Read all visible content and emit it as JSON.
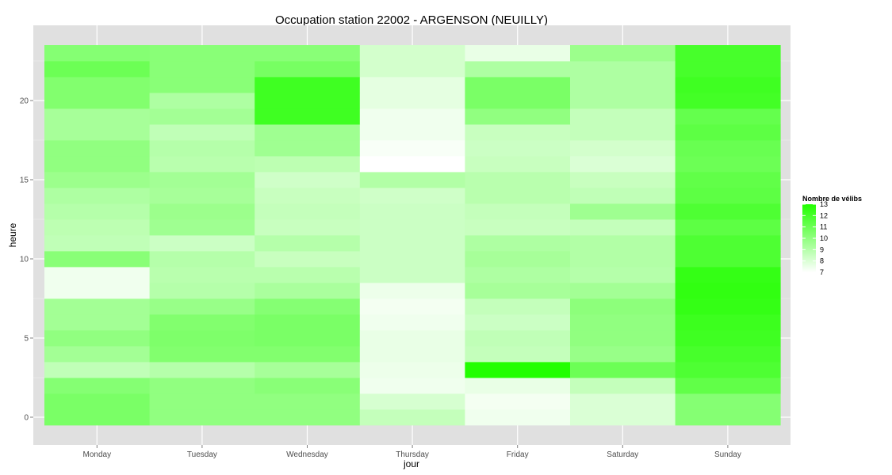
{
  "chart_data": {
    "type": "heatmap",
    "title": "Occupation station 22002 - ARGENSON (NEUILLY)",
    "xlabel": "jour",
    "ylabel": "heure",
    "categories": [
      "Monday",
      "Tuesday",
      "Wednesday",
      "Thursday",
      "Friday",
      "Saturday",
      "Sunday"
    ],
    "hours": [
      0,
      1,
      2,
      3,
      4,
      5,
      6,
      7,
      8,
      9,
      10,
      11,
      12,
      13,
      14,
      15,
      16,
      17,
      18,
      19,
      20,
      21,
      22,
      23
    ],
    "ylim": [
      -0.5,
      23.5
    ],
    "y_ticks": [
      0,
      5,
      10,
      15,
      20
    ],
    "grid": true,
    "values": [
      [
        10.6,
        10.0,
        10.0,
        8.6,
        7.4,
        8.0,
        10.3
      ],
      [
        10.6,
        10.0,
        10.0,
        8.1,
        7.3,
        8.0,
        10.3
      ],
      [
        10.3,
        10.0,
        10.2,
        7.4,
        7.6,
        8.6,
        11.3
      ],
      [
        8.7,
        9.0,
        9.4,
        7.5,
        13.6,
        11.0,
        11.8
      ],
      [
        9.5,
        10.4,
        10.4,
        7.6,
        8.6,
        9.8,
        12.0
      ],
      [
        10.0,
        10.5,
        10.6,
        7.6,
        8.7,
        10.0,
        12.2
      ],
      [
        9.5,
        10.4,
        10.6,
        7.4,
        8.4,
        10.0,
        12.3
      ],
      [
        9.5,
        9.8,
        10.3,
        7.3,
        8.6,
        10.1,
        12.5
      ],
      [
        7.4,
        9.0,
        9.3,
        7.5,
        9.4,
        9.5,
        12.6
      ],
      [
        7.4,
        8.9,
        8.9,
        8.4,
        9.2,
        9.0,
        12.5
      ],
      [
        10.2,
        9.0,
        8.5,
        8.4,
        9.4,
        9.1,
        11.8
      ],
      [
        8.7,
        8.4,
        9.0,
        8.4,
        9.2,
        9.1,
        11.8
      ],
      [
        8.8,
        9.6,
        8.5,
        8.4,
        8.5,
        8.6,
        11.4
      ],
      [
        9.0,
        9.7,
        8.6,
        8.4,
        8.6,
        9.6,
        11.8
      ],
      [
        9.2,
        9.4,
        8.5,
        8.3,
        8.9,
        8.7,
        11.4
      ],
      [
        9.7,
        9.5,
        8.3,
        9.1,
        8.9,
        8.5,
        11.3
      ],
      [
        10.0,
        8.9,
        8.8,
        7.0,
        8.5,
        8.0,
        11.0
      ],
      [
        10.0,
        9.0,
        9.6,
        7.2,
        8.4,
        8.2,
        11.1
      ],
      [
        9.4,
        8.7,
        9.6,
        7.4,
        8.5,
        8.6,
        11.4
      ],
      [
        9.4,
        9.5,
        12.2,
        7.4,
        10.0,
        8.6,
        11.2
      ],
      [
        10.4,
        9.2,
        12.2,
        7.7,
        10.6,
        9.2,
        12.1
      ],
      [
        10.4,
        10.2,
        12.2,
        7.7,
        10.6,
        9.2,
        12.2
      ],
      [
        11.0,
        10.2,
        10.7,
        8.2,
        9.2,
        9.2,
        12.0
      ],
      [
        10.3,
        10.2,
        10.2,
        8.2,
        7.6,
        9.7,
        12.0
      ]
    ],
    "color_scale": {
      "min": 7,
      "max": 13,
      "low_color": "#ffffff",
      "high_color": "#22ff00"
    },
    "legend": {
      "title": "Nombre de vélibs",
      "labels": [
        "13",
        "12",
        "11",
        "10",
        "9",
        "8",
        "7"
      ],
      "values": [
        13,
        12,
        11,
        10,
        9,
        8,
        7
      ],
      "placement": "right"
    }
  },
  "colors": {
    "panel_background": "#e0e0e0",
    "grid_line": "#ffffff",
    "low": "#ffffff",
    "high": "#22ff00"
  }
}
